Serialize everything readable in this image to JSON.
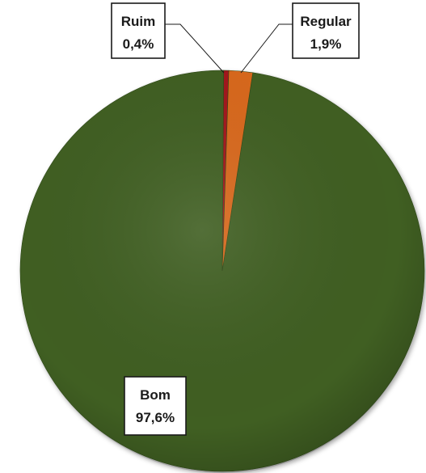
{
  "chart_data": {
    "type": "pie",
    "title": "",
    "slices": [
      {
        "name": "Bom",
        "value": 97.6,
        "label": "97,6%",
        "color": "#3f5e23"
      },
      {
        "name": "Ruim",
        "value": 0.4,
        "label": "0,4%",
        "color": "#a3161b"
      },
      {
        "name": "Regular",
        "value": 1.9,
        "label": "1,9%",
        "color": "#d8681a"
      }
    ],
    "legend": "none",
    "style": "3d-beveled"
  }
}
